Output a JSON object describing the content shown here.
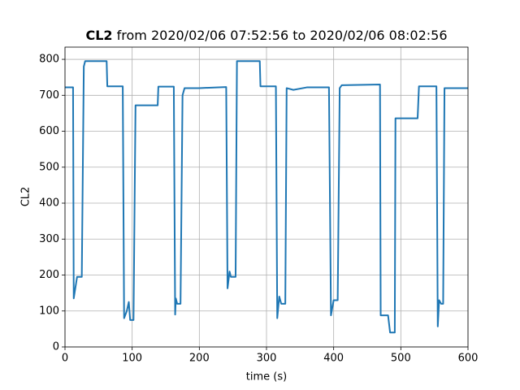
{
  "chart_data": {
    "type": "line",
    "title": "CL2",
    "title_rest": "from 2020/02/06 07:52:56 to 2020/02/06 08:02:56",
    "x_label": "time (s)",
    "y_label": "CL2",
    "x": [
      0,
      12,
      13,
      18,
      25,
      28,
      30,
      62,
      63,
      86,
      88,
      92,
      95,
      97,
      102,
      105,
      138,
      139,
      162,
      164,
      165,
      167,
      172,
      175,
      178,
      200,
      240,
      242,
      245,
      247,
      254,
      256,
      290,
      291,
      314,
      316,
      319,
      322,
      328,
      330,
      340,
      360,
      393,
      396,
      400,
      406,
      409,
      412,
      469,
      470,
      481,
      484,
      491,
      492,
      525,
      527,
      553,
      555,
      557,
      560,
      563,
      565,
      600
    ],
    "series": [
      {
        "name": "CL2",
        "color": "#1f77b4",
        "values": [
          722,
          722,
          135,
          195,
          195,
          780,
          795,
          795,
          725,
          725,
          80,
          100,
          125,
          75,
          75,
          672,
          672,
          724,
          724,
          90,
          135,
          120,
          120,
          700,
          720,
          720,
          723,
          163,
          210,
          195,
          195,
          795,
          795,
          725,
          725,
          80,
          140,
          120,
          120,
          720,
          715,
          722,
          722,
          88,
          130,
          130,
          720,
          728,
          730,
          88,
          88,
          40,
          40,
          636,
          636,
          725,
          725,
          57,
          130,
          120,
          120,
          720,
          720
        ]
      }
    ],
    "xlim": [
      0,
      600
    ],
    "xticks": [
      0,
      100,
      200,
      300,
      400,
      500,
      600
    ],
    "ylim": [
      0,
      834
    ],
    "yticks": [
      0,
      100,
      200,
      300,
      400,
      500,
      600,
      700,
      800
    ],
    "grid": true
  }
}
